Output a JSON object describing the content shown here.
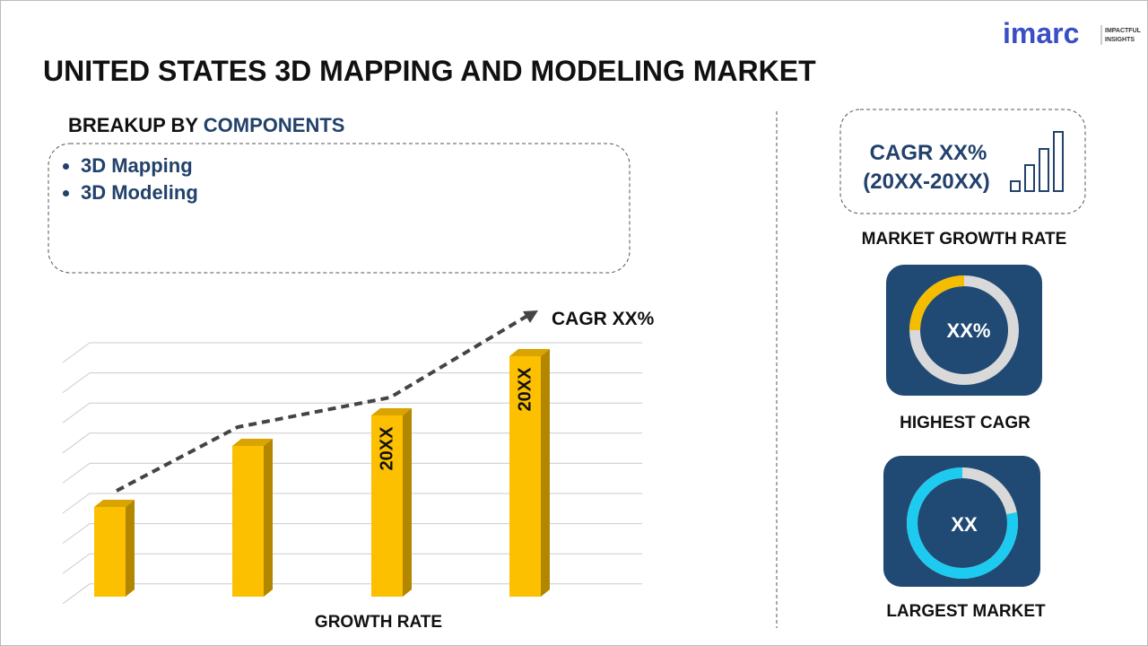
{
  "header": {
    "title": "UNITED STATES 3D MAPPING AND MODELING MARKET",
    "logo": "imarc",
    "logo_tagline": [
      "IMPACTFUL",
      "INSIGHTS"
    ]
  },
  "breakup": {
    "label": "BREAKUP BY",
    "segment": "COMPONENTS",
    "items": [
      "3D Mapping",
      "3D Modeling"
    ]
  },
  "growth_chart": {
    "cagr_label": "CAGR XX%",
    "bar_labels": [
      "20XX",
      "20XX"
    ],
    "x_label": "GROWTH RATE"
  },
  "side": {
    "cagr_box": {
      "line1": "CAGR XX%",
      "line2": "(20XX-20XX)"
    },
    "market_growth_rate": "MARKET GROWTH RATE",
    "highest_cagr": {
      "value": "XX%",
      "label": "HIGHEST CAGR"
    },
    "largest_market": {
      "value": "XX",
      "label": "LARGEST MARKET"
    }
  }
}
